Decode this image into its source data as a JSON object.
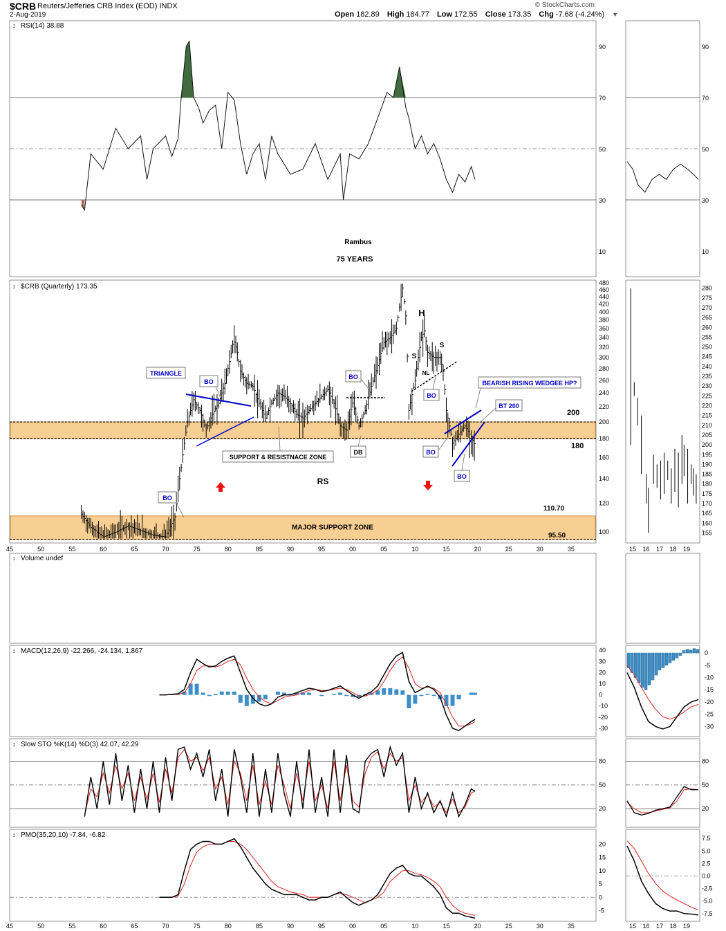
{
  "header": {
    "symbol": "$CRB",
    "name": "Reuters/Jefferies CRB Index (EOD)",
    "exchange": "INDX",
    "date": "2-Aug-2019",
    "brand": "© StockCharts.com",
    "ohlc": {
      "open_label": "Open",
      "open": "182.89",
      "high_label": "High",
      "high": "184.77",
      "low_label": "Low",
      "low": "172.55",
      "close_label": "Close",
      "close": "173.35",
      "chg_label": "Chg",
      "chg": "-7.68 (-4.24%)"
    }
  },
  "colors": {
    "rsi_fill_overbought": "#3f6b3f",
    "rsi_fill_oversold": "#a97060",
    "zone_fill": "#f8cf92",
    "zone_border": "#d8923a",
    "annotation_blue": "#0000cc",
    "arrow_red": "#ee1111",
    "signal_red": "#dd2222",
    "histogram_blue": "#3c8fc8"
  },
  "chart_data": [
    {
      "id": "rsi",
      "type": "line",
      "title": "RSI(14) 38.88",
      "ylim": [
        0,
        100
      ],
      "yticks": [
        10,
        30,
        50,
        70,
        90
      ],
      "overbought": 70,
      "oversold": 30,
      "midline": 50,
      "x": [
        1956.5,
        1957,
        1958,
        1960,
        1962,
        1964,
        1966,
        1967,
        1968,
        1970,
        1971,
        1972,
        1972.5,
        1973.3,
        1973.8,
        1974.5,
        1975.3,
        1976,
        1977,
        1978,
        1979,
        1980,
        1981,
        1982,
        1983,
        1984,
        1985,
        1986,
        1987,
        1988,
        1990,
        1992,
        1994,
        1996,
        1998,
        1998.5,
        1999.5,
        2001,
        2002.5,
        2004,
        2005.5,
        2006.5,
        2007.5,
        2008.5,
        2009,
        2010,
        2011,
        2012,
        2013,
        2014,
        2015,
        2016,
        2017,
        2018,
        2019,
        2019.6
      ],
      "values": [
        28,
        26,
        48,
        42,
        58,
        50,
        55,
        38,
        50,
        55,
        47,
        54,
        70,
        90,
        92,
        70,
        66,
        60,
        65,
        67,
        50,
        72,
        69,
        52,
        40,
        48,
        52,
        38,
        55,
        48,
        40,
        42,
        52,
        38,
        48,
        30,
        48,
        46,
        52,
        62,
        72,
        70,
        82,
        66,
        62,
        50,
        55,
        48,
        52,
        46,
        38,
        33,
        40,
        37,
        43,
        38
      ]
    },
    {
      "id": "price",
      "type": "line",
      "title": "$CRB (Quarterly) 173.35",
      "ylim": [
        95,
        480
      ],
      "log_scale": true,
      "yticks": [
        100,
        120,
        140,
        160,
        180,
        200,
        220,
        240,
        260,
        280,
        300,
        320,
        340,
        360,
        380,
        400,
        420,
        440,
        460,
        480
      ],
      "x": [
        1956.5,
        1958,
        1960,
        1962,
        1964,
        1966,
        1968,
        1970,
        1971.5,
        1972.5,
        1973.5,
        1974.5,
        1975.5,
        1976.5,
        1977.5,
        1978.5,
        1979.5,
        1980.3,
        1980.9,
        1981.5,
        1982,
        1983,
        1984,
        1985,
        1986,
        1987,
        1988,
        1989,
        1990,
        1991,
        1992,
        1993,
        1994,
        1995,
        1996,
        1997,
        1998,
        1999,
        2000,
        2001,
        2002,
        2003,
        2004,
        2005,
        2006,
        2007,
        2008,
        2008.5,
        2009,
        2010,
        2011,
        2011.5,
        2012,
        2013,
        2014,
        2014.5,
        2015,
        2016,
        2017,
        2018,
        2019,
        2019.6
      ],
      "values": [
        112,
        103,
        97,
        100,
        104,
        101,
        98,
        97,
        110,
        150,
        200,
        230,
        215,
        190,
        210,
        225,
        255,
        295,
        335,
        310,
        275,
        255,
        250,
        225,
        205,
        225,
        240,
        235,
        225,
        210,
        205,
        215,
        225,
        235,
        245,
        225,
        195,
        190,
        225,
        195,
        215,
        250,
        285,
        330,
        340,
        360,
        465,
        390,
        215,
        260,
        340,
        355,
        310,
        300,
        300,
        275,
        215,
        175,
        185,
        195,
        182,
        173
      ],
      "annotations": [
        "TRIANGLE",
        "BO",
        "BO",
        "BO",
        "BO",
        "BO",
        "BO",
        "DB",
        "S",
        "H",
        "S",
        "NL",
        "RS",
        "BEARISH RISING WEDGEE HP?",
        "BT 200",
        "SUPPORT & RESISTNACE ZONE",
        "MAJOR SUPPORT ZONE",
        "Rambus",
        "75 YEARS"
      ],
      "levels": {
        "zone_top": 200,
        "zone_bottom": 180,
        "major_top": 110.7,
        "major_bottom": 95.5
      }
    },
    {
      "id": "price_inset",
      "type": "line",
      "ylim": [
        152,
        282
      ],
      "yticks": [
        155,
        160,
        165,
        170,
        175,
        180,
        185,
        190,
        195,
        200,
        205,
        210,
        215,
        220,
        225,
        230,
        235,
        240,
        245,
        250,
        255,
        260,
        265,
        270,
        275,
        280
      ],
      "xticks": [
        "15",
        "16",
        "17",
        "18",
        "19"
      ]
    },
    {
      "id": "volume",
      "type": "bar",
      "title": "Volume undef"
    },
    {
      "id": "macd",
      "type": "line",
      "title": "MACD(12,26,9) -22.266, -24.134, 1.867",
      "ylim": [
        -35,
        42
      ],
      "yticks": [
        -30,
        -20,
        -10,
        0,
        10,
        20,
        30,
        40
      ],
      "x": [
        1969,
        1970,
        1971,
        1972,
        1973,
        1974,
        1975,
        1976,
        1977,
        1978,
        1979,
        1980,
        1981,
        1982,
        1983,
        1984,
        1985,
        1986,
        1987,
        1988,
        1989,
        1990,
        1991,
        1992,
        1993,
        1994,
        1995,
        1996,
        1997,
        1998,
        1999,
        2000,
        2001,
        2002,
        2003,
        2004,
        2005,
        2006,
        2007,
        2008,
        2009,
        2010,
        2011,
        2012,
        2013,
        2014,
        2015,
        2016,
        2017,
        2018,
        2019,
        2019.6
      ],
      "series": [
        {
          "values": [
            0,
            0,
            0.5,
            1,
            5,
            20,
            32,
            28,
            25,
            26,
            30,
            33,
            35,
            20,
            5,
            -3,
            -8,
            -10,
            -8,
            -2,
            0,
            0,
            2,
            4,
            6,
            5,
            3,
            4,
            6,
            8,
            4,
            0,
            -3,
            0,
            3,
            8,
            18,
            28,
            35,
            38,
            12,
            2,
            5,
            8,
            5,
            -2,
            -18,
            -30,
            -32,
            -28,
            -24,
            -22
          ]
        },
        {
          "values": [
            0,
            0,
            0.2,
            0.5,
            2,
            10,
            22,
            26,
            26,
            25,
            27,
            30,
            32,
            27,
            15,
            5,
            -2,
            -6,
            -8,
            -5,
            -2,
            -1,
            0,
            2,
            4,
            5,
            4,
            4,
            5,
            6,
            5,
            2,
            -1,
            -1,
            1,
            4,
            12,
            22,
            30,
            34,
            24,
            10,
            6,
            7,
            6,
            2,
            -8,
            -20,
            -28,
            -28,
            -26,
            -24
          ]
        },
        {
          "name": "histogram",
          "values": [
            0,
            0,
            0.2,
            0.5,
            3,
            10,
            10,
            2,
            -1,
            1,
            3,
            3,
            3,
            -7,
            -10,
            -8,
            -6,
            -4,
            0,
            3,
            2,
            1,
            2,
            2,
            2,
            0,
            -1,
            0,
            1,
            2,
            -1,
            -2,
            -2,
            1,
            2,
            4,
            6,
            6,
            5,
            4,
            -12,
            -8,
            -1,
            1,
            -1,
            -4,
            -10,
            -10,
            -4,
            0,
            2,
            1.9
          ]
        }
      ]
    },
    {
      "id": "macd_inset",
      "type": "line",
      "ylim": [
        -33,
        2
      ],
      "yticks": [
        -30,
        -25,
        -20,
        -15,
        -10,
        -5,
        0
      ]
    },
    {
      "id": "slowsto",
      "type": "line",
      "title": "Slow STO %K(14) %D(3) 42.07, 42.29",
      "ylim": [
        0,
        105
      ],
      "yticks": [
        20,
        50,
        80
      ],
      "x": [
        1957,
        1958,
        1959,
        1960,
        1961,
        1962,
        1963,
        1964,
        1965,
        1966,
        1967,
        1968,
        1969,
        1970,
        1971,
        1972,
        1973,
        1974,
        1975,
        1976,
        1977,
        1978,
        1979,
        1980,
        1981,
        1982,
        1983,
        1984,
        1985,
        1986,
        1987,
        1988,
        1989,
        1990,
        1991,
        1992,
        1993,
        1994,
        1995,
        1996,
        1997,
        1998,
        1999,
        2000,
        2001,
        2002,
        2003,
        2004,
        2005,
        2006,
        2007,
        2008,
        2009,
        2010,
        2011,
        2012,
        2013,
        2014,
        2015,
        2016,
        2017,
        2018,
        2019,
        2019.6
      ],
      "series": [
        {
          "values": [
            10,
            60,
            20,
            80,
            25,
            90,
            30,
            75,
            15,
            70,
            20,
            80,
            15,
            85,
            30,
            95,
            98,
            70,
            90,
            60,
            95,
            30,
            70,
            10,
            95,
            60,
            15,
            90,
            10,
            70,
            15,
            90,
            40,
            10,
            80,
            20,
            95,
            15,
            60,
            10,
            95,
            15,
            88,
            20,
            15,
            80,
            90,
            95,
            60,
            98,
            75,
            90,
            15,
            60,
            20,
            40,
            15,
            30,
            10,
            40,
            10,
            25,
            45,
            42
          ]
        },
        {
          "values": [
            12,
            45,
            35,
            65,
            40,
            75,
            45,
            65,
            30,
            60,
            32,
            65,
            28,
            70,
            40,
            85,
            95,
            80,
            85,
            68,
            85,
            45,
            60,
            25,
            80,
            65,
            30,
            75,
            25,
            55,
            25,
            75,
            50,
            20,
            65,
            30,
            80,
            30,
            50,
            20,
            80,
            30,
            75,
            30,
            22,
            65,
            85,
            92,
            70,
            90,
            80,
            85,
            30,
            50,
            28,
            38,
            22,
            28,
            15,
            32,
            15,
            22,
            40,
            42
          ]
        }
      ]
    },
    {
      "id": "slowsto_inset",
      "type": "line",
      "yticks": [
        20,
        50,
        80
      ]
    },
    {
      "id": "pmo",
      "type": "line",
      "title": "PMO(35,20,10) -7.84, -6.82",
      "ylim": [
        -8,
        24
      ],
      "yticks": [
        -5,
        0,
        5,
        10,
        15,
        20
      ],
      "x": [
        1969,
        1970,
        1971,
        1972,
        1973,
        1974,
        1975,
        1976,
        1977,
        1978,
        1979,
        1980,
        1981,
        1982,
        1983,
        1984,
        1985,
        1986,
        1987,
        1988,
        1989,
        1990,
        1991,
        1992,
        1993,
        1994,
        1995,
        1996,
        1997,
        1998,
        1999,
        2000,
        2001,
        2002,
        2003,
        2004,
        2005,
        2006,
        2007,
        2008,
        2009,
        2010,
        2011,
        2012,
        2013,
        2014,
        2015,
        2016,
        2017,
        2018,
        2019,
        2019.6
      ],
      "series": [
        {
          "values": [
            0,
            0,
            0,
            1,
            10,
            18,
            20,
            21,
            21,
            20,
            20,
            21,
            22,
            19,
            15,
            11,
            8,
            5,
            3,
            2,
            1,
            1,
            1,
            0,
            -1,
            -1,
            0,
            0,
            1,
            2,
            0,
            -2,
            -3,
            -2,
            -1,
            1,
            5,
            9,
            11,
            12,
            9,
            8,
            8,
            6,
            4,
            1,
            -4,
            -6,
            -6,
            -7,
            -7.5,
            -7.84
          ]
        },
        {
          "values": [
            0,
            0,
            0,
            0.5,
            5,
            12,
            17,
            19,
            20,
            20,
            20,
            21,
            21,
            20,
            18,
            15,
            12,
            9,
            6,
            4,
            3,
            2,
            1.5,
            1,
            0,
            0,
            0,
            0,
            1,
            1.5,
            1,
            0,
            -1,
            -2,
            -1,
            0,
            2,
            6,
            8,
            10,
            10,
            9,
            8.5,
            7.5,
            6,
            4,
            0,
            -3,
            -5,
            -6,
            -6.5,
            -6.82
          ]
        }
      ]
    },
    {
      "id": "pmo_inset",
      "type": "line",
      "ylim": [
        -8.5,
        8.5
      ],
      "yticks": [
        -7.5,
        -5.0,
        -2.5,
        0.0,
        2.5,
        5.0,
        7.5
      ]
    }
  ],
  "x_axis": {
    "main_ticks": [
      "45",
      "50",
      "55",
      "60",
      "65",
      "70",
      "75",
      "80",
      "85",
      "90",
      "95",
      "00",
      "05",
      "10",
      "15",
      "20",
      "25",
      "30",
      "35"
    ],
    "inset_ticks": [
      "15",
      "16",
      "17",
      "18",
      "19"
    ]
  }
}
